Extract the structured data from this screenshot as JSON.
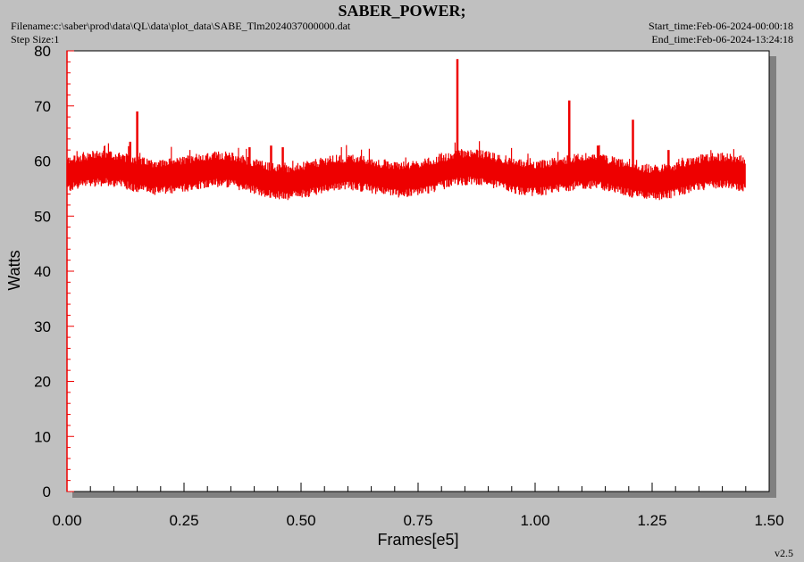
{
  "header": {
    "title": "SABER_POWER;",
    "filename": "Filename:c:\\saber\\prod\\data\\QL\\data\\plot_data\\SABE_Tlm2024037000000.dat",
    "step_size": "Step Size:1",
    "start_time": "Start_time:Feb-06-2024-00:00:18",
    "end_time": "End_time:Feb-06-2024-13:24:18"
  },
  "version": "v2.5",
  "chart_data": {
    "type": "line",
    "title": "SABER_POWER;",
    "xlabel": "Frames[e5]",
    "ylabel": "Watts",
    "xlim": [
      0.0,
      1.5
    ],
    "ylim": [
      0,
      80
    ],
    "x_ticks": [
      "0.00",
      "0.25",
      "0.50",
      "0.75",
      "1.00",
      "1.25",
      "1.50"
    ],
    "y_ticks": [
      "0",
      "10",
      "20",
      "30",
      "40",
      "50",
      "60",
      "70",
      "80"
    ],
    "colors": {
      "line": "#ee0000",
      "background": "#c0c0c0",
      "plot_area": "#ffffff",
      "shadow": "#808080"
    },
    "series": [
      {
        "x_range": [
          0.0,
          1.45
        ],
        "baseline_mean": 57.5,
        "band_low": 55,
        "band_high": 60,
        "spikes": [
          {
            "x": 0.135,
            "y": 63.5
          },
          {
            "x": 0.15,
            "y": 69.0
          },
          {
            "x": 0.39,
            "y": 62.5
          },
          {
            "x": 0.436,
            "y": 62.8
          },
          {
            "x": 0.461,
            "y": 62.5
          },
          {
            "x": 0.834,
            "y": 78.5
          },
          {
            "x": 1.073,
            "y": 71.0
          },
          {
            "x": 1.134,
            "y": 62.8
          },
          {
            "x": 1.209,
            "y": 67.5
          },
          {
            "x": 1.285,
            "y": 62.0
          }
        ]
      }
    ]
  }
}
